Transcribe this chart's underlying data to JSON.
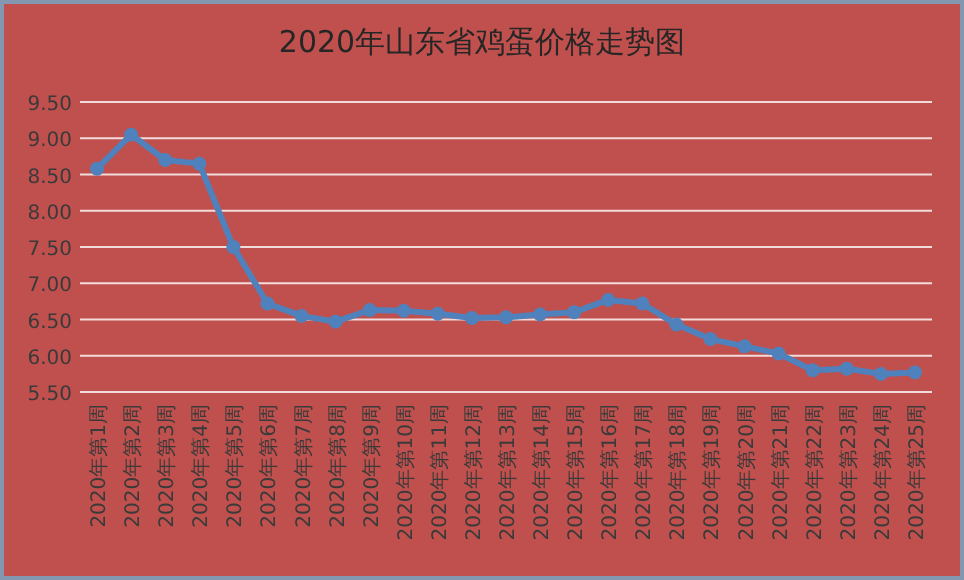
{
  "chart_data": {
    "type": "line",
    "title": "2020年山东省鸡蛋价格走势图",
    "categories": [
      "2020年第1周",
      "2020年第2周",
      "2020年第3周",
      "2020年第4周",
      "2020年第5周",
      "2020年第6周",
      "2020年第7周",
      "2020年第8周",
      "2020年第9周",
      "2020年第10周",
      "2020年第11周",
      "2020年第12周",
      "2020年第13周",
      "2020年第14周",
      "2020年第15周",
      "2020年第16周",
      "2020年第17周",
      "2020年第18周",
      "2020年第19周",
      "2020年第20周",
      "2020年第21周",
      "2020年第22周",
      "2020年第23周",
      "2020年第24周",
      "2020年第25周"
    ],
    "series": [
      {
        "color": "#4f81bd",
        "values": [
          8.58,
          9.05,
          8.7,
          8.65,
          7.5,
          6.72,
          6.55,
          6.47,
          6.63,
          6.62,
          6.58,
          6.52,
          6.53,
          6.57,
          6.6,
          6.77,
          6.72,
          6.43,
          6.23,
          6.13,
          6.03,
          5.8,
          5.82,
          5.75,
          5.77
        ]
      }
    ],
    "ylim": [
      5.5,
      9.5
    ],
    "yticks": [
      {
        "value": 5.5,
        "label": "5.50"
      },
      {
        "value": 6,
        "label": "6.00"
      },
      {
        "value": 6.5,
        "label": "6.50"
      },
      {
        "value": 7,
        "label": "7.00"
      },
      {
        "value": 7.5,
        "label": "7.50"
      },
      {
        "value": 8,
        "label": "8.00"
      },
      {
        "value": 8.5,
        "label": "8.50"
      },
      {
        "value": 9,
        "label": "9.00"
      },
      {
        "value": 9.5,
        "label": "9.50"
      }
    ],
    "grid": "y",
    "marker": "circle",
    "line_style": "solid"
  }
}
